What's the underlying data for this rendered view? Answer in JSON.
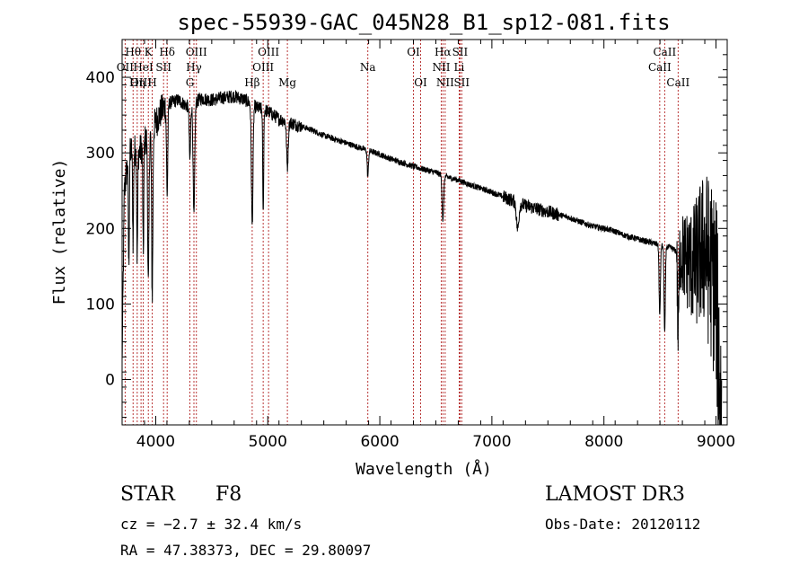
{
  "chart_data": {
    "type": "line",
    "title": "spec-55939-GAC_045N28_B1_sp12-081.fits",
    "xlabel": "Wavelength (Å)",
    "ylabel": "Flux (relative)",
    "xlim": [
      3700,
      9100
    ],
    "ylim": [
      -60,
      450
    ],
    "xticks": [
      4000,
      5000,
      6000,
      7000,
      8000,
      9000
    ],
    "yticks": [
      0,
      100,
      200,
      300,
      400
    ],
    "spectral_lines": [
      {
        "label": "Hθ",
        "wavelength": 3798,
        "row": 0
      },
      {
        "label": "OII",
        "wavelength": 3727,
        "row": 1
      },
      {
        "label": "OIII",
        "wavelength": 3869,
        "row": 2
      },
      {
        "label": "K",
        "wavelength": 3934,
        "row": 0
      },
      {
        "label": "HeI",
        "wavelength": 3889,
        "row": 1
      },
      {
        "label": "Hη",
        "wavelength": 3835,
        "row": 2
      },
      {
        "label": "Hδ",
        "wavelength": 4102,
        "row": 0
      },
      {
        "label": "SII",
        "wavelength": 4070,
        "row": 1
      },
      {
        "label": "H",
        "wavelength": 3969,
        "row": 2
      },
      {
        "label": "OIII",
        "wavelength": 4363,
        "row": 0
      },
      {
        "label": "Hγ",
        "wavelength": 4341,
        "row": 1
      },
      {
        "label": "G",
        "wavelength": 4305,
        "row": 2
      },
      {
        "label": "Hβ",
        "wavelength": 4861,
        "row": 2
      },
      {
        "label": "OIII",
        "wavelength": 5007,
        "row": 0
      },
      {
        "label": "OIII",
        "wavelength": 4959,
        "row": 1
      },
      {
        "label": "Mg",
        "wavelength": 5175,
        "row": 2
      },
      {
        "label": "Na",
        "wavelength": 5893,
        "row": 1
      },
      {
        "label": "OI",
        "wavelength": 6300,
        "row": 0
      },
      {
        "label": "OI",
        "wavelength": 6364,
        "row": 2
      },
      {
        "label": "Hα",
        "wavelength": 6563,
        "row": 0
      },
      {
        "label": "SII",
        "wavelength": 6716,
        "row": 0
      },
      {
        "label": "NII",
        "wavelength": 6548,
        "row": 1
      },
      {
        "label": "Li",
        "wavelength": 6708,
        "row": 1
      },
      {
        "label": "NII",
        "wavelength": 6583,
        "row": 2
      },
      {
        "label": "SII",
        "wavelength": 6731,
        "row": 2
      },
      {
        "label": "CaII",
        "wavelength": 8542,
        "row": 0
      },
      {
        "label": "CaII",
        "wavelength": 8498,
        "row": 1
      },
      {
        "label": "CaII",
        "wavelength": 8662,
        "row": 2
      }
    ],
    "continuum": [
      [
        3700,
        20
      ],
      [
        3720,
        250
      ],
      [
        3760,
        300
      ],
      [
        3800,
        305
      ],
      [
        3850,
        300
      ],
      [
        3900,
        315
      ],
      [
        3950,
        325
      ],
      [
        4000,
        340
      ],
      [
        4050,
        355
      ],
      [
        4100,
        365
      ],
      [
        4200,
        370
      ],
      [
        4300,
        360
      ],
      [
        4400,
        372
      ],
      [
        4500,
        370
      ],
      [
        4600,
        373
      ],
      [
        4700,
        375
      ],
      [
        4800,
        370
      ],
      [
        4900,
        360
      ],
      [
        5000,
        355
      ],
      [
        5100,
        345
      ],
      [
        5200,
        340
      ],
      [
        5300,
        335
      ],
      [
        5400,
        330
      ],
      [
        5500,
        323
      ],
      [
        5600,
        318
      ],
      [
        5700,
        313
      ],
      [
        5800,
        308
      ],
      [
        5900,
        303
      ],
      [
        6000,
        298
      ],
      [
        6100,
        292
      ],
      [
        6200,
        287
      ],
      [
        6300,
        282
      ],
      [
        6400,
        278
      ],
      [
        6500,
        274
      ],
      [
        6600,
        268
      ],
      [
        6700,
        264
      ],
      [
        6800,
        258
      ],
      [
        6900,
        253
      ],
      [
        7000,
        248
      ],
      [
        7100,
        242
      ],
      [
        7200,
        236
      ],
      [
        7300,
        230
      ],
      [
        7400,
        226
      ],
      [
        7500,
        222
      ],
      [
        7600,
        218
      ],
      [
        7700,
        214
      ],
      [
        7800,
        208
      ],
      [
        7900,
        203
      ],
      [
        8000,
        200
      ],
      [
        8100,
        196
      ],
      [
        8200,
        190
      ],
      [
        8300,
        186
      ],
      [
        8400,
        182
      ],
      [
        8500,
        178
      ],
      [
        8600,
        174
      ],
      [
        8700,
        165
      ],
      [
        8800,
        150
      ],
      [
        8900,
        175
      ],
      [
        9000,
        120
      ],
      [
        9050,
        -60
      ]
    ],
    "absorption": [
      {
        "wavelength": 3760,
        "depth": 150,
        "width": 6
      },
      {
        "wavelength": 3798,
        "depth": 120,
        "width": 6
      },
      {
        "wavelength": 3835,
        "depth": 140,
        "width": 6
      },
      {
        "wavelength": 3889,
        "depth": 150,
        "width": 6
      },
      {
        "wavelength": 3934,
        "depth": 200,
        "width": 8
      },
      {
        "wavelength": 3969,
        "depth": 220,
        "width": 8
      },
      {
        "wavelength": 4102,
        "depth": 120,
        "width": 8
      },
      {
        "wavelength": 4305,
        "depth": 70,
        "width": 8
      },
      {
        "wavelength": 4341,
        "depth": 150,
        "width": 10
      },
      {
        "wavelength": 4861,
        "depth": 160,
        "width": 10
      },
      {
        "wavelength": 4959,
        "depth": 140,
        "width": 6
      },
      {
        "wavelength": 5175,
        "depth": 60,
        "width": 10
      },
      {
        "wavelength": 5893,
        "depth": 35,
        "width": 8
      },
      {
        "wavelength": 6563,
        "depth": 60,
        "width": 10
      },
      {
        "wavelength": 7230,
        "depth": 35,
        "width": 15
      },
      {
        "wavelength": 8498,
        "depth": 95,
        "width": 8
      },
      {
        "wavelength": 8542,
        "depth": 115,
        "width": 8
      },
      {
        "wavelength": 8662,
        "depth": 110,
        "width": 8
      }
    ]
  },
  "info": {
    "object_class": "STAR",
    "subclass": "F8",
    "survey": "LAMOST DR3",
    "redshift_line": "cz = −2.7 ± 32.4 km/s",
    "obs_date": "Obs-Date: 20120112",
    "coords": "RA =  47.38373, DEC =  29.80097"
  }
}
